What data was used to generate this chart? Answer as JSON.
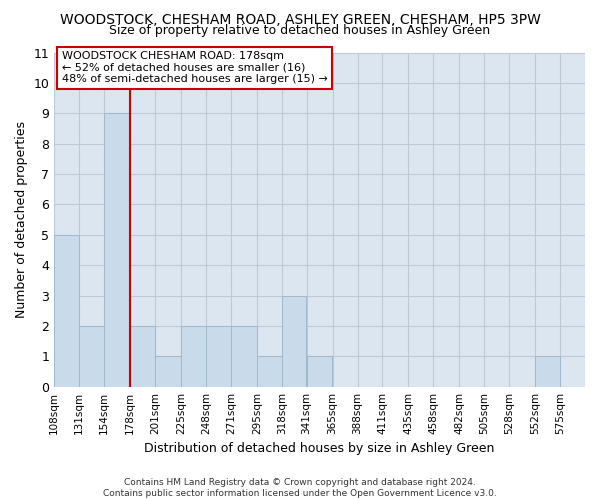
{
  "title": "WOODSTOCK, CHESHAM ROAD, ASHLEY GREEN, CHESHAM, HP5 3PW",
  "subtitle": "Size of property relative to detached houses in Ashley Green",
  "xlabel": "Distribution of detached houses by size in Ashley Green",
  "ylabel": "Number of detached properties",
  "footnote": "Contains HM Land Registry data © Crown copyright and database right 2024.\nContains public sector information licensed under the Open Government Licence v3.0.",
  "bin_edges": [
    108,
    131,
    154,
    178,
    201,
    225,
    248,
    271,
    295,
    318,
    341,
    365,
    388,
    411,
    435,
    458,
    482,
    505,
    528,
    552,
    575,
    598
  ],
  "bar_values": [
    5,
    2,
    9,
    2,
    1,
    2,
    2,
    2,
    1,
    3,
    1,
    0,
    0,
    0,
    0,
    0,
    0,
    0,
    0,
    1,
    0
  ],
  "tick_labels": [
    "108sqm",
    "131sqm",
    "154sqm",
    "178sqm",
    "201sqm",
    "225sqm",
    "248sqm",
    "271sqm",
    "295sqm",
    "318sqm",
    "341sqm",
    "365sqm",
    "388sqm",
    "411sqm",
    "435sqm",
    "458sqm",
    "482sqm",
    "505sqm",
    "528sqm",
    "552sqm",
    "575sqm"
  ],
  "bar_color": "#c9daea",
  "bar_edge_color": "#a0b8cc",
  "grid_color": "#c0c8d8",
  "background_color": "#dce6f0",
  "annotation_text": "WOODSTOCK CHESHAM ROAD: 178sqm\n← 52% of detached houses are smaller (16)\n48% of semi-detached houses are larger (15) →",
  "annotation_box_color": "#ffffff",
  "annotation_box_edge": "#cc0000",
  "red_line_x": 178,
  "ylim": [
    0,
    11
  ],
  "yticks": [
    0,
    1,
    2,
    3,
    4,
    5,
    6,
    7,
    8,
    9,
    10,
    11
  ],
  "title_fontsize": 10,
  "subtitle_fontsize": 9,
  "ylabel_fontsize": 9,
  "xlabel_fontsize": 9
}
